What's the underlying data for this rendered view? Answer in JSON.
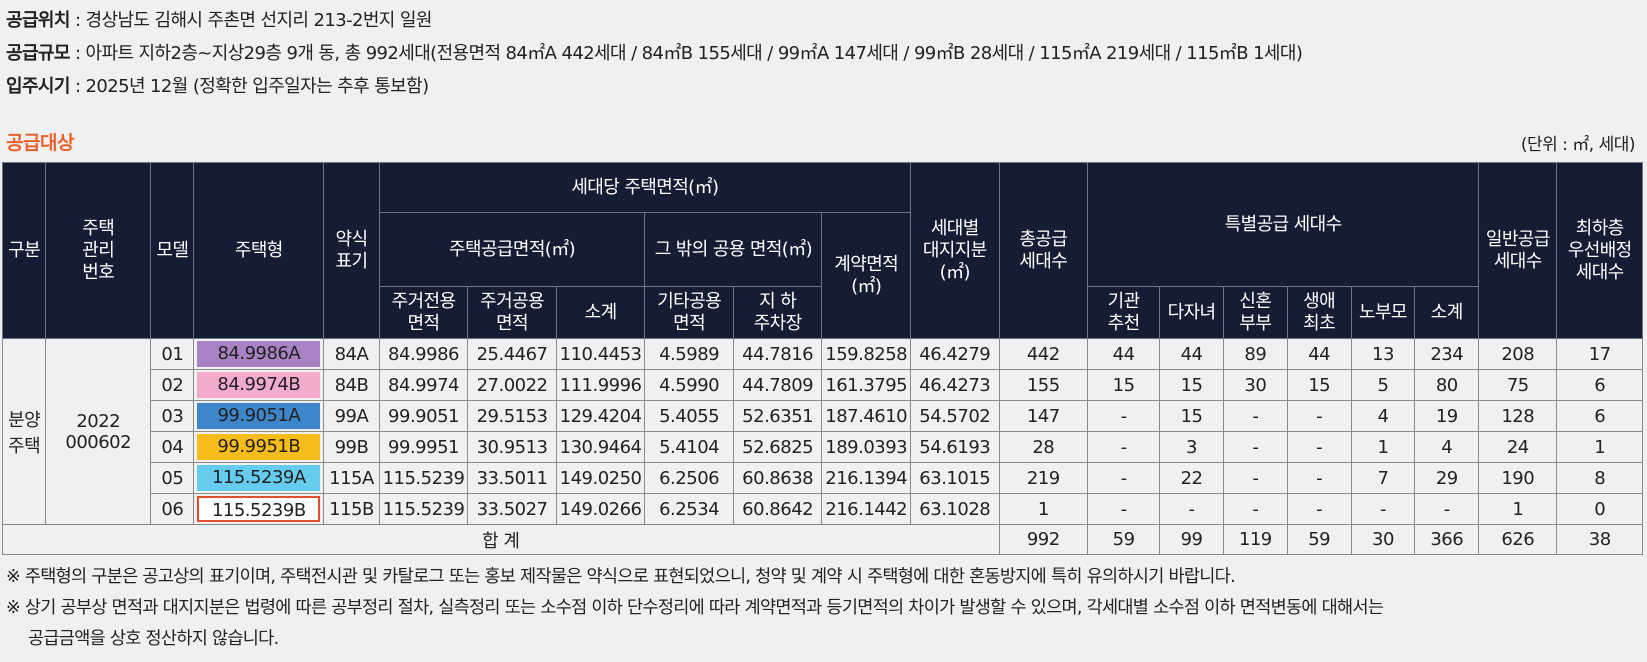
{
  "info": {
    "location_label": "공급위치",
    "location_value": " : 경상남도 김해시 주촌면 선지리 213-2번지 일원",
    "scale_label": "공급규모",
    "scale_value": " : 아파트 지하2층~지상29층 9개 동, 총 992세대(전용면적 84㎡A 442세대 / 84㎡B 155세대 / 99㎡A 147세대 / 99㎡B 28세대 / 115㎡A 219세대 / 115㎡B 1세대)",
    "movein_label": "입주시기",
    "movein_value": " : 2025년 12월 (정확한 입주일자는 추후 통보함)"
  },
  "section_title": "공급대상",
  "unit_note": "(단위 : ㎡, 세대)",
  "headers": {
    "category": "구분",
    "mgmt_no_1": "주택",
    "mgmt_no_2": "관리",
    "mgmt_no_3": "번호",
    "model": "모델",
    "house_type": "주택형",
    "abbr_1": "약식",
    "abbr_2": "표기",
    "area_per_unit": "세대당 주택면적(㎡)",
    "supply_area": "주택공급면적(㎡)",
    "other_common": "그 밖의 공용 면적(㎡)",
    "contract_1": "계약면적",
    "contract_2": "(㎡)",
    "land_1": "세대별",
    "land_2": "대지지분",
    "land_3": "(㎡)",
    "total_supply_1": "총공급",
    "total_supply_2": "세대수",
    "special": "특별공급 세대수",
    "general_1": "일반공급",
    "general_2": "세대수",
    "lowest_1": "최하층",
    "lowest_2": "우선배정",
    "lowest_3": "세대수",
    "exclusive_1": "주거전용",
    "exclusive_2": "면적",
    "common_1": "주거공용",
    "common_2": "면적",
    "subtotal": "소계",
    "etc_common_1": "기타공용",
    "etc_common_2": "면적",
    "parking_1": "지 하",
    "parking_2": "주차장",
    "inst_1": "기관",
    "inst_2": "추천",
    "multi_child": "다자녀",
    "newlywed_1": "신혼",
    "newlywed_2": "부부",
    "first_1": "생애",
    "first_2": "최초",
    "elderly": "노부모",
    "special_subtotal": "소계"
  },
  "body": {
    "category_1": "분양",
    "category_2": "주택",
    "mgmt_no_1": "2022",
    "mgmt_no_2": "000602"
  },
  "type_colors": [
    "#a882c4",
    "#f2abcc",
    "#3d86cc",
    "#f6bd1a",
    "#66ccef",
    "#ffffff"
  ],
  "selected_border_color": "#e0502a",
  "rows": [
    {
      "model": "01",
      "type": "84.9986A",
      "abbr": "84A",
      "exclusive": "84.9986",
      "common": "25.4467",
      "supply_subtotal": "110.4453",
      "etc_common": "4.5989",
      "parking": "44.7816",
      "contract": "159.8258",
      "land": "46.4279",
      "total": "442",
      "inst": "44",
      "multi": "44",
      "newlywed": "89",
      "first": "44",
      "elderly": "13",
      "special_subtotal": "234",
      "general": "208",
      "lowest": "17"
    },
    {
      "model": "02",
      "type": "84.9974B",
      "abbr": "84B",
      "exclusive": "84.9974",
      "common": "27.0022",
      "supply_subtotal": "111.9996",
      "etc_common": "4.5990",
      "parking": "44.7809",
      "contract": "161.3795",
      "land": "46.4273",
      "total": "155",
      "inst": "15",
      "multi": "15",
      "newlywed": "30",
      "first": "15",
      "elderly": "5",
      "special_subtotal": "80",
      "general": "75",
      "lowest": "6"
    },
    {
      "model": "03",
      "type": "99.9051A",
      "abbr": "99A",
      "exclusive": "99.9051",
      "common": "29.5153",
      "supply_subtotal": "129.4204",
      "etc_common": "5.4055",
      "parking": "52.6351",
      "contract": "187.4610",
      "land": "54.5702",
      "total": "147",
      "inst": "-",
      "multi": "15",
      "newlywed": "-",
      "first": "-",
      "elderly": "4",
      "special_subtotal": "19",
      "general": "128",
      "lowest": "6"
    },
    {
      "model": "04",
      "type": "99.9951B",
      "abbr": "99B",
      "exclusive": "99.9951",
      "common": "30.9513",
      "supply_subtotal": "130.9464",
      "etc_common": "5.4104",
      "parking": "52.6825",
      "contract": "189.0393",
      "land": "54.6193",
      "total": "28",
      "inst": "-",
      "multi": "3",
      "newlywed": "-",
      "first": "-",
      "elderly": "1",
      "special_subtotal": "4",
      "general": "24",
      "lowest": "1"
    },
    {
      "model": "05",
      "type": "115.5239A",
      "abbr": "115A",
      "exclusive": "115.5239",
      "common": "33.5011",
      "supply_subtotal": "149.0250",
      "etc_common": "6.2506",
      "parking": "60.8638",
      "contract": "216.1394",
      "land": "63.1015",
      "total": "219",
      "inst": "-",
      "multi": "22",
      "newlywed": "-",
      "first": "-",
      "elderly": "7",
      "special_subtotal": "29",
      "general": "190",
      "lowest": "8"
    },
    {
      "model": "06",
      "type": "115.5239B",
      "abbr": "115B",
      "exclusive": "115.5239",
      "common": "33.5027",
      "supply_subtotal": "149.0266",
      "etc_common": "6.2534",
      "parking": "60.8642",
      "contract": "216.1442",
      "land": "63.1028",
      "total": "1",
      "inst": "-",
      "multi": "-",
      "newlywed": "-",
      "first": "-",
      "elderly": "-",
      "special_subtotal": "-",
      "general": "1",
      "lowest": "0"
    }
  ],
  "totals": {
    "label": "합 계",
    "total": "992",
    "inst": "59",
    "multi": "99",
    "newlywed": "119",
    "first": "59",
    "elderly": "30",
    "special_subtotal": "366",
    "general": "626",
    "lowest": "38"
  },
  "notes": {
    "note1": "※ 주택형의 구분은 공고상의 표기이며, 주택전시관 및 카탈로그 또는 홍보 제작물은 약식으로 표현되었으니, 청약 및 계약 시 주택형에 대한 혼동방지에 특히 유의하시기 바랍니다.",
    "note2_line1": "※ 상기 공부상 면적과 대지지분은 법령에 따른 공부정리 절차, 실측정리 또는 소수점 이하 단수정리에 따라 계약면적과 등기면적의 차이가 발생할 수 있으며, 각세대별 소수점 이하 면적변동에 대해서는",
    "note2_line2": "공급금액을 상호 정산하지 않습니다."
  }
}
